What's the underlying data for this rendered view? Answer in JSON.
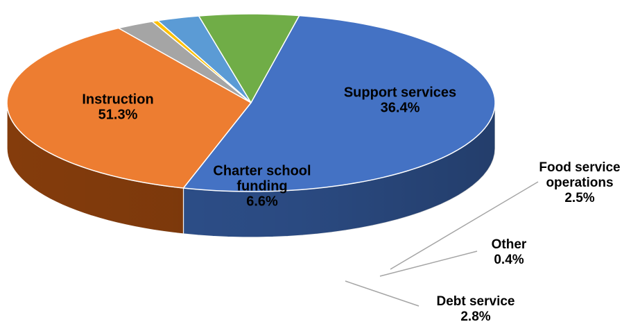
{
  "chart_data": {
    "type": "pie",
    "style": "3d",
    "title": "",
    "categories": [
      "Instruction",
      "Support services",
      "Food service operations",
      "Other",
      "Debt service",
      "Charter school funding"
    ],
    "values": [
      51.3,
      36.4,
      2.5,
      0.4,
      2.8,
      6.6
    ],
    "value_labels": [
      "51.3%",
      "36.4%",
      "2.5%",
      "0.4%",
      "2.8%",
      "6.6%"
    ],
    "label_lines": [
      [
        "Instruction"
      ],
      [
        "Support services"
      ],
      [
        "Food service",
        "operations"
      ],
      [
        "Other"
      ],
      [
        "Debt service"
      ],
      [
        "Charter school",
        "funding"
      ]
    ],
    "colors": [
      "#4472C4",
      "#ED7D31",
      "#A5A5A5",
      "#FFC000",
      "#5B9BD5",
      "#70AD47"
    ],
    "side_colors": [
      "#2F528F",
      "#843C0C",
      "#3C3C3C",
      "#7F6000",
      "#1F3864",
      "#375623"
    ],
    "legend": "none",
    "leader_line_color": "#A5A5A5"
  }
}
